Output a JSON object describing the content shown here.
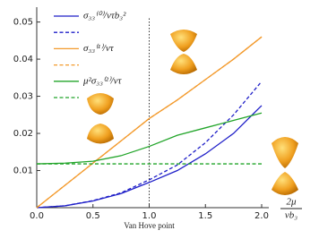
{
  "chart_data": {
    "type": "line",
    "x": [
      0,
      0.25,
      0.5,
      0.75,
      1.0,
      1.25,
      1.5,
      1.75,
      2.0
    ],
    "series": [
      {
        "name": "σ₃₃⁽⁰⁾/vτb₃²",
        "color": "#1f1fc8",
        "dash": false,
        "values": [
          0,
          0.0005,
          0.0018,
          0.0038,
          0.0068,
          0.01,
          0.0145,
          0.02,
          0.0275
        ]
      },
      {
        "color": "#1f1fc8",
        "dash": true,
        "values": [
          0,
          0.0005,
          0.0019,
          0.004,
          0.0075,
          0.0115,
          0.0175,
          0.025,
          0.034
        ]
      },
      {
        "name": "σ₃₃⁽¹⁾/vτ",
        "color": "#f39a2c",
        "dash": false,
        "values": [
          0,
          0.006,
          0.012,
          0.018,
          0.024,
          0.029,
          0.0345,
          0.04,
          0.046
        ]
      },
      {
        "color": "#f39a2c",
        "dash": true,
        "values": [
          0,
          0.006,
          0.012,
          0.018,
          0.024,
          0.029,
          0.0345,
          0.04,
          0.046
        ]
      },
      {
        "name": "μ²σ₃₃⁽²⁾/vτ",
        "color": "#22a52a",
        "dash": false,
        "values": [
          0.0118,
          0.012,
          0.0125,
          0.014,
          0.0165,
          0.0195,
          0.0215,
          0.0235,
          0.0255
        ]
      },
      {
        "color": "#22a52a",
        "dash": true,
        "values": [
          0.0118,
          0.0118,
          0.0118,
          0.0118,
          0.0118,
          0.0118,
          0.0118,
          0.0118,
          0.0118
        ]
      }
    ],
    "xlim": [
      0,
      2.0
    ],
    "ylim": [
      0,
      0.054
    ],
    "xticks": [
      {
        "value": 0,
        "label": "0.0"
      },
      0.5,
      {
        "value": 1,
        "label": "1.0"
      },
      1.5,
      {
        "value": 2,
        "label": "2.0"
      }
    ],
    "yticks": [
      0.01,
      0.02,
      0.03,
      0.04,
      0.05
    ],
    "xlabel": {
      "numerator": "2μ",
      "denominator": "vb₃"
    },
    "vline": {
      "x": 1.0,
      "label": "Van Hove point"
    },
    "legend": "upper left"
  }
}
